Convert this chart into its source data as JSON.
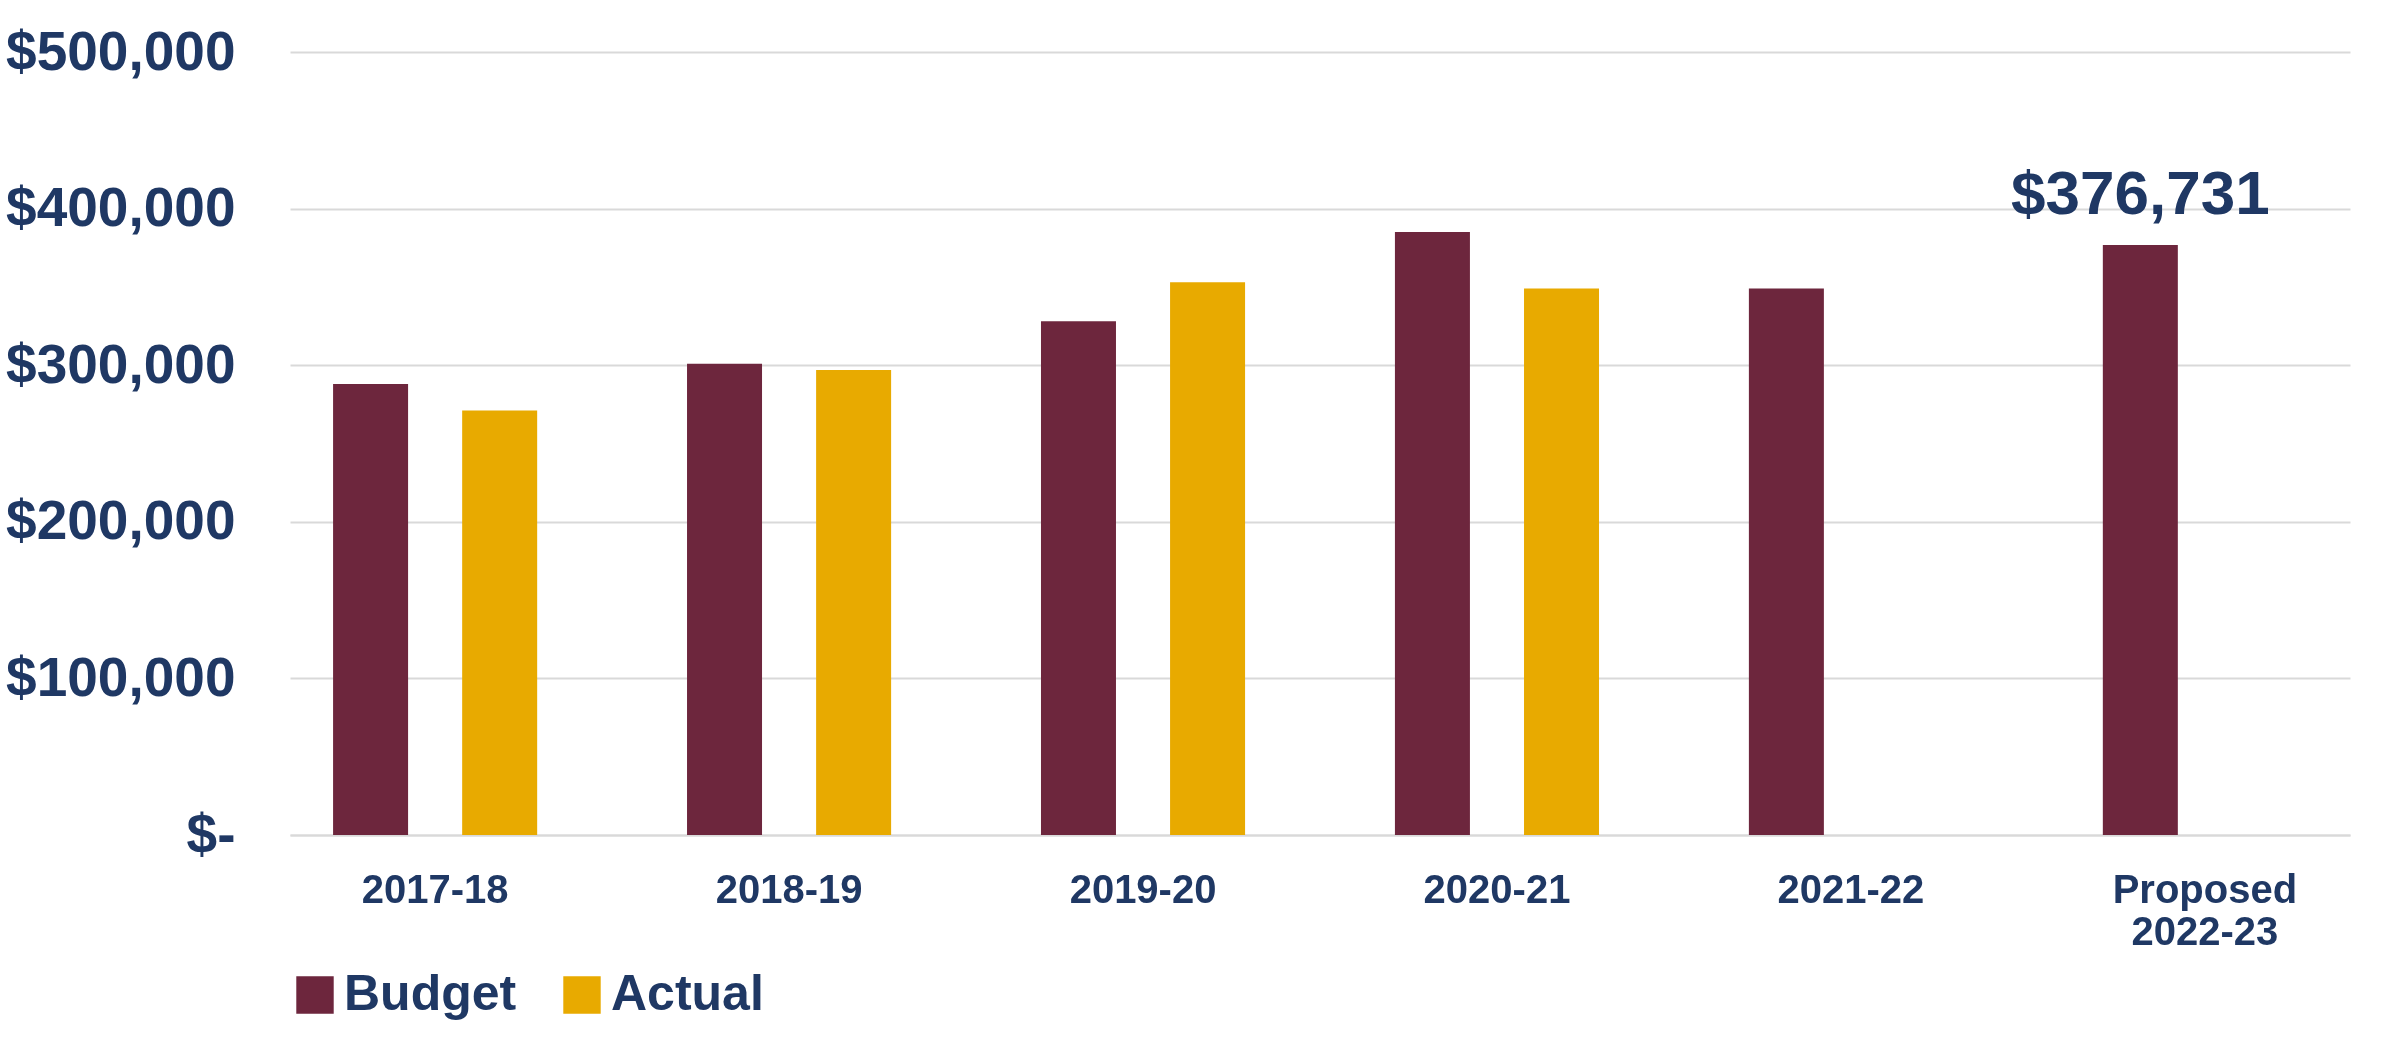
{
  "chart_data": {
    "type": "bar",
    "categories": [
      "2017-18",
      "2018-19",
      "2019-20",
      "2020-21",
      "2021-22",
      "Proposed 2022-23"
    ],
    "series": [
      {
        "name": "Budget",
        "color": "#6d263d",
        "values": [
          288000,
          301000,
          328000,
          385000,
          349000,
          376731
        ],
        "value_labels": [
          null,
          null,
          null,
          null,
          null,
          "$376,731"
        ]
      },
      {
        "name": "Actual",
        "color": "#e8aa00",
        "values": [
          271000,
          297000,
          353000,
          349000,
          null,
          null
        ]
      }
    ],
    "ylim": [
      0,
      500000
    ],
    "yticks": [
      {
        "value": 0,
        "label": "$-"
      },
      {
        "value": 100000,
        "label": "$100,000"
      },
      {
        "value": 200000,
        "label": "$200,000"
      },
      {
        "value": 300000,
        "label": "$300,000"
      },
      {
        "value": 400000,
        "label": "$400,000"
      },
      {
        "value": 500000,
        "label": "$500,000"
      }
    ],
    "grid": "y",
    "legend": "bottom"
  }
}
